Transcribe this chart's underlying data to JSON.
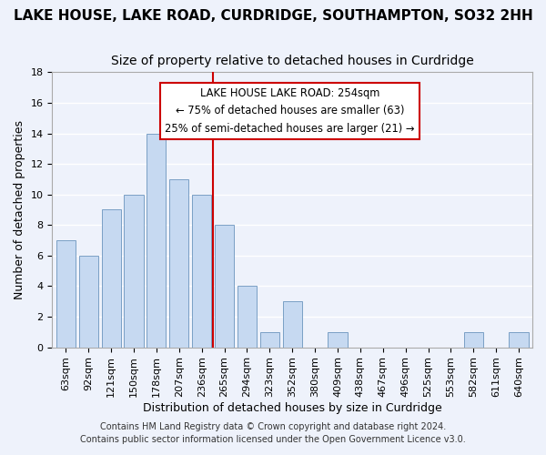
{
  "title": "LAKE HOUSE, LAKE ROAD, CURDRIDGE, SOUTHAMPTON, SO32 2HH",
  "subtitle": "Size of property relative to detached houses in Curdridge",
  "xlabel": "Distribution of detached houses by size in Curdridge",
  "ylabel": "Number of detached properties",
  "bin_labels": [
    "63sqm",
    "92sqm",
    "121sqm",
    "150sqm",
    "178sqm",
    "207sqm",
    "236sqm",
    "265sqm",
    "294sqm",
    "323sqm",
    "352sqm",
    "380sqm",
    "409sqm",
    "438sqm",
    "467sqm",
    "496sqm",
    "525sqm",
    "553sqm",
    "582sqm",
    "611sqm",
    "640sqm"
  ],
  "bar_heights": [
    7,
    6,
    9,
    10,
    14,
    11,
    10,
    8,
    4,
    1,
    3,
    0,
    1,
    0,
    0,
    0,
    0,
    0,
    1,
    0,
    1
  ],
  "bar_color": "#c6d9f1",
  "bar_edge_color": "#7a9fc5",
  "vline_x": 6.5,
  "vline_color": "#cc0000",
  "annotation_title": "LAKE HOUSE LAKE ROAD: 254sqm",
  "annotation_line1": "← 75% of detached houses are smaller (63)",
  "annotation_line2": "25% of semi-detached houses are larger (21) →",
  "annotation_box_facecolor": "#ffffff",
  "annotation_box_edgecolor": "#cc0000",
  "ylim": [
    0,
    18
  ],
  "yticks": [
    0,
    2,
    4,
    6,
    8,
    10,
    12,
    14,
    16,
    18
  ],
  "footer1": "Contains HM Land Registry data © Crown copyright and database right 2024.",
  "footer2": "Contains public sector information licensed under the Open Government Licence v3.0.",
  "background_color": "#eef2fb",
  "grid_color": "#ffffff",
  "title_fontsize": 11,
  "subtitle_fontsize": 10,
  "axis_label_fontsize": 9,
  "tick_fontsize": 8,
  "footer_fontsize": 7
}
